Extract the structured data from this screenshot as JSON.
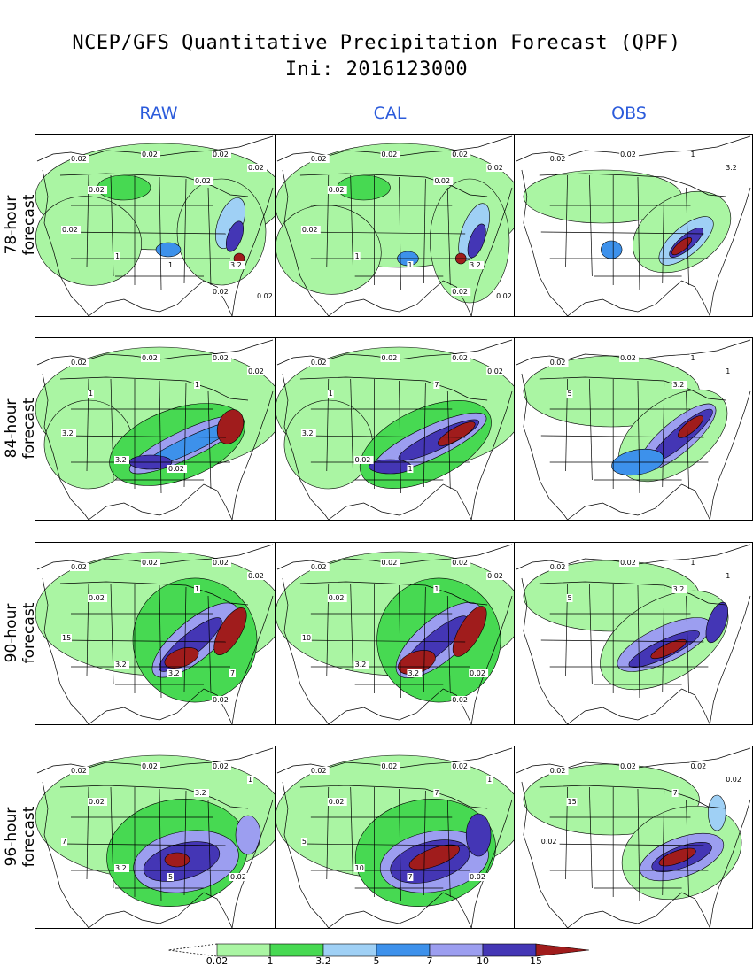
{
  "header": {
    "title_line1": "NCEP/GFS Quantitative Precipitation Forecast (QPF)",
    "title_line2": "Ini: 2016123000"
  },
  "columns": [
    {
      "label": "RAW"
    },
    {
      "label": "CAL"
    },
    {
      "label": "OBS"
    }
  ],
  "rows": [
    {
      "label": "78-hour forecast"
    },
    {
      "label": "84-hour forecast"
    },
    {
      "label": "90-hour forecast"
    },
    {
      "label": "96-hour forecast"
    }
  ],
  "panel_labels": {
    "r0c0": [
      "0.02",
      "0.02",
      "0.02",
      "0.02",
      "0.02",
      "0.02",
      "0.02",
      "1",
      "1",
      "3.2",
      "0.02",
      "0.02"
    ],
    "r0c1": [
      "0.02",
      "0.02",
      "0.02",
      "0.02",
      "0.02",
      "0.02",
      "0.02",
      "1",
      "1",
      "3.2",
      "0.02",
      "0.02"
    ],
    "r0c2": [
      "0.02",
      "0.02",
      "1",
      "3.2"
    ],
    "r1c0": [
      "0.02",
      "0.02",
      "0.02",
      "0.02",
      "1",
      "1",
      "3.2",
      "3.2",
      "0.02"
    ],
    "r1c1": [
      "0.02",
      "0.02",
      "0.02",
      "0.02",
      "1",
      "7",
      "3.2",
      "0.02",
      "1"
    ],
    "r1c2": [
      "0.02",
      "0.02",
      "1",
      "1",
      "5",
      "3.2"
    ],
    "r2c0": [
      "0.02",
      "0.02",
      "0.02",
      "0.02",
      "0.02",
      "1",
      "15",
      "3.2",
      "3.2",
      "7",
      "0.02"
    ],
    "r2c1": [
      "0.02",
      "0.02",
      "0.02",
      "0.02",
      "0.02",
      "1",
      "10",
      "3.2",
      "3.2",
      "0.02",
      "0.02"
    ],
    "r2c2": [
      "0.02",
      "0.02",
      "1",
      "1",
      "5",
      "3.2"
    ],
    "r3c0": [
      "0.02",
      "0.02",
      "0.02",
      "1",
      "0.02",
      "3.2",
      "7",
      "3.2",
      "5",
      "0.02"
    ],
    "r3c1": [
      "0.02",
      "0.02",
      "0.02",
      "1",
      "0.02",
      "7",
      "5",
      "10",
      "7",
      "0.02"
    ],
    "r3c2": [
      "0.02",
      "0.02",
      "0.02",
      "0.02",
      "15",
      "7",
      "0.02"
    ]
  },
  "legend": {
    "ticks": [
      "0.02",
      "1",
      "3.2",
      "5",
      "7",
      "10",
      "15"
    ],
    "colors": [
      "#aaf5a3",
      "#47d952",
      "#9fd0f5",
      "#3d91eb",
      "#9c9ef0",
      "#4436b5",
      "#a01c1c"
    ],
    "below_color": "#ffffff"
  },
  "colors": {
    "light_green": "#aaf5a3",
    "green": "#47d952",
    "light_blue": "#9fd0f5",
    "blue": "#3d91eb",
    "lavender": "#9c9ef0",
    "indigo": "#4436b5",
    "dark_red": "#a01c1c",
    "header_blue": "#2b5bdb"
  }
}
